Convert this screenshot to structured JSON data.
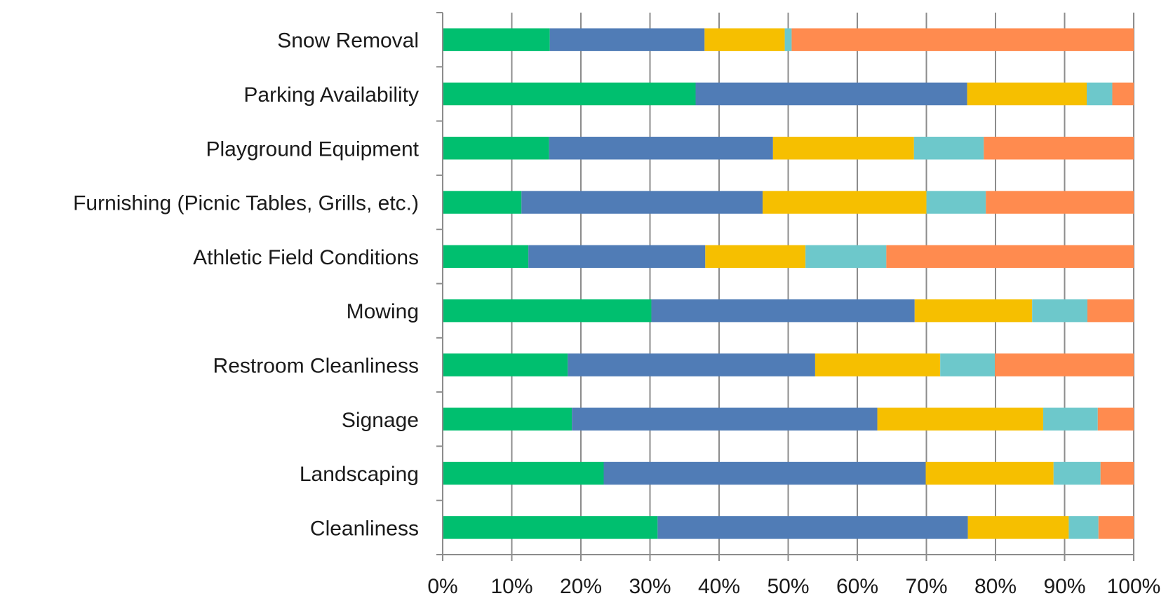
{
  "chart_data": {
    "type": "bar",
    "orientation": "horizontal",
    "stacked": "percent",
    "title": "",
    "xlabel": "",
    "ylabel": "",
    "xlim": [
      0,
      100
    ],
    "x_ticks": [
      "0%",
      "10%",
      "20%",
      "30%",
      "40%",
      "50%",
      "60%",
      "70%",
      "80%",
      "90%",
      "100%"
    ],
    "grid": "vertical",
    "legend": "none",
    "categories": [
      "Snow Removal",
      "Parking Availability",
      "Playground Equipment",
      "Furnishing (Picnic Tables, Grills, etc.)",
      "Athletic Field Conditions",
      "Mowing",
      "Restroom Cleanliness",
      "Signage",
      "Landscaping",
      "Cleanliness"
    ],
    "series": [
      {
        "color": "#00bf6f",
        "values": [
          15.5,
          36.6,
          15.4,
          11.4,
          12.4,
          30.2,
          18.1,
          18.7,
          23.3,
          31.1
        ]
      },
      {
        "color": "#507cb6",
        "values": [
          22.4,
          39.3,
          32.4,
          34.9,
          25.6,
          38.1,
          35.8,
          44.2,
          46.6,
          44.9
        ]
      },
      {
        "color": "#f6bf00",
        "values": [
          11.6,
          17.3,
          20.4,
          23.7,
          14.5,
          17.0,
          18.1,
          24.0,
          18.5,
          14.6
        ]
      },
      {
        "color": "#6dc8cb",
        "values": [
          1.0,
          3.7,
          10.1,
          8.6,
          11.7,
          8.0,
          7.9,
          7.9,
          6.8,
          4.3
        ]
      },
      {
        "color": "#ff8b4f",
        "values": [
          49.5,
          3.1,
          21.7,
          21.4,
          35.8,
          6.7,
          20.1,
          5.2,
          4.8,
          5.1
        ]
      }
    ]
  }
}
